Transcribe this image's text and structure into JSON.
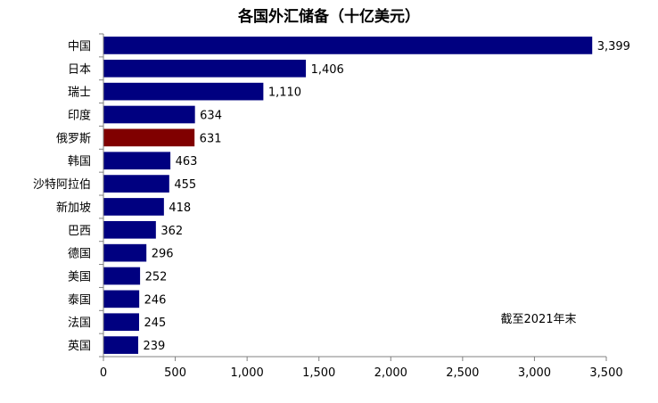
{
  "chart_data": {
    "type": "bar",
    "orientation": "horizontal",
    "title": "各国外汇储备（十亿美元）",
    "categories": [
      "中国",
      "日本",
      "瑞士",
      "印度",
      "俄罗斯",
      "韩国",
      "沙特阿拉伯",
      "新加坡",
      "巴西",
      "德国",
      "美国",
      "泰国",
      "法国",
      "英国"
    ],
    "values": [
      3399,
      1406,
      1110,
      634,
      631,
      463,
      455,
      418,
      362,
      296,
      252,
      246,
      245,
      239
    ],
    "value_labels": [
      "3,399",
      "1,406",
      "1,110",
      "634",
      "631",
      "463",
      "455",
      "418",
      "362",
      "296",
      "252",
      "246",
      "245",
      "239"
    ],
    "xlim": [
      0,
      3500
    ],
    "xticks": [
      0,
      500,
      1000,
      1500,
      2000,
      2500,
      3000,
      3500
    ],
    "xtick_labels": [
      "0",
      "500",
      "1,000",
      "1,500",
      "2,000",
      "2,500",
      "3,000",
      "3,500"
    ],
    "xlabel": "",
    "ylabel": "",
    "grid": false,
    "legend": "none",
    "annotation": "截至2021年末",
    "colors": {
      "bar": "#000080",
      "highlight": "#800000",
      "axis": "#808080",
      "text": "#000000"
    },
    "highlight_category": "俄罗斯"
  }
}
